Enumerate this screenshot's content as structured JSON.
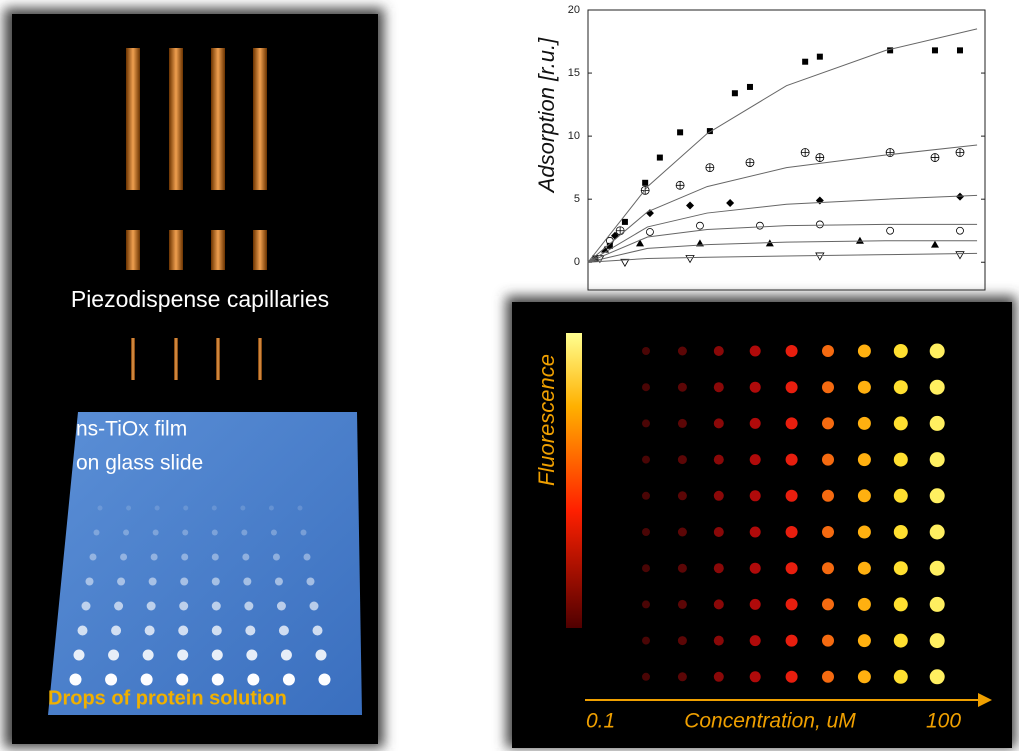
{
  "chart_data": {
    "type": "scatter",
    "ylabel": "Adsorption [r.u.]",
    "xlim": [
      0,
      1
    ],
    "ylim": [
      -2.2,
      20
    ],
    "yticks": [
      0,
      5,
      10,
      15,
      20
    ],
    "series": [
      {
        "marker": "square",
        "color": "#000000",
        "x": [
          0.018,
          0.055,
          0.093,
          0.144,
          0.181,
          0.232,
          0.307,
          0.37,
          0.408,
          0.547,
          0.584,
          0.761,
          0.874,
          0.937
        ],
        "values": [
          0.3,
          1.3,
          3.2,
          6.3,
          8.3,
          10.3,
          10.4,
          13.4,
          13.9,
          15.9,
          16.3,
          16.8,
          16.8,
          16.8
        ]
      },
      {
        "marker": "crossed-circle",
        "color": "#000000",
        "x": [
          0.081,
          0.144,
          0.232,
          0.307,
          0.408,
          0.547,
          0.584,
          0.761,
          0.874,
          0.937
        ],
        "values": [
          2.5,
          5.7,
          6.1,
          7.5,
          7.9,
          8.7,
          8.3,
          8.7,
          8.3,
          8.7
        ]
      },
      {
        "marker": "diamond",
        "color": "#000000",
        "x": [
          0.068,
          0.156,
          0.257,
          0.358,
          0.584,
          0.937
        ],
        "values": [
          2.1,
          3.9,
          4.5,
          4.7,
          4.9,
          5.2
        ]
      },
      {
        "marker": "circle",
        "color": "#000000",
        "x": [
          0.055,
          0.156,
          0.282,
          0.433,
          0.584,
          0.761,
          0.937
        ],
        "values": [
          1.7,
          2.4,
          2.9,
          2.9,
          3.0,
          2.5,
          2.5
        ]
      },
      {
        "marker": "triangle",
        "color": "#000000",
        "x": [
          0.043,
          0.131,
          0.282,
          0.458,
          0.685,
          0.874
        ],
        "values": [
          1.0,
          1.5,
          1.5,
          1.5,
          1.7,
          1.4
        ]
      },
      {
        "marker": "triangle-down",
        "color": "#000000",
        "x": [
          0.03,
          0.093,
          0.257,
          0.584,
          0.937
        ],
        "values": [
          0.3,
          0.0,
          0.3,
          0.5,
          0.6
        ]
      },
      {
        "marker": "line",
        "color": "#666666",
        "x": [
          0,
          0.15,
          0.3,
          0.5,
          0.75,
          0.98
        ],
        "values": [
          0,
          6,
          10.2,
          14,
          16.8,
          18.5
        ]
      },
      {
        "marker": "line",
        "color": "#666666",
        "x": [
          0,
          0.15,
          0.3,
          0.5,
          0.75,
          0.98
        ],
        "values": [
          0,
          4,
          6,
          7.5,
          8.5,
          9.3
        ]
      },
      {
        "marker": "line",
        "color": "#666666",
        "x": [
          0,
          0.15,
          0.3,
          0.5,
          0.75,
          0.98
        ],
        "values": [
          0,
          2.8,
          3.9,
          4.6,
          5.0,
          5.3
        ]
      },
      {
        "marker": "line",
        "color": "#666666",
        "x": [
          0,
          0.15,
          0.3,
          0.5,
          0.75,
          0.98
        ],
        "values": [
          0,
          2.0,
          2.6,
          2.9,
          3.0,
          3.0
        ]
      },
      {
        "marker": "line",
        "color": "#666666",
        "x": [
          0,
          0.15,
          0.3,
          0.5,
          0.75,
          0.98
        ],
        "values": [
          0,
          1.1,
          1.4,
          1.6,
          1.7,
          1.7
        ]
      },
      {
        "marker": "line",
        "color": "#666666",
        "x": [
          0,
          0.15,
          0.3,
          0.5,
          0.75,
          0.98
        ],
        "values": [
          0,
          0.3,
          0.4,
          0.5,
          0.6,
          0.7
        ]
      }
    ]
  },
  "left_panel": {
    "capillaries_label": "Piezodispense capillaries",
    "film_label": [
      "ns-TiOx film",
      "on glass slide"
    ],
    "drops_label": "Drops of protein solution"
  },
  "fluorescence_panel": {
    "scale_label": "Fluorescence",
    "axis_start": "0.1",
    "axis_label": "Concentration, uM",
    "axis_end": "100"
  }
}
